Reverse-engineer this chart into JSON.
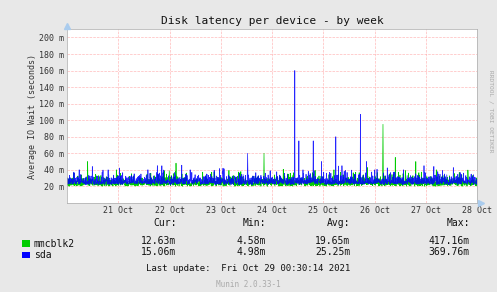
{
  "title": "Disk latency per device - by week",
  "ylabel": "Average IO Wait (seconds)",
  "background_color": "#e8e8e8",
  "plot_bg_color": "#ffffff",
  "grid_color_h": "#ffaaaa",
  "grid_color_v": "#ffaaaa",
  "line1_color": "#00cc00",
  "line2_color": "#0000ff",
  "line1_label": "mmcblk2",
  "line2_label": "sda",
  "ylim": [
    0,
    210
  ],
  "yticks": [
    20,
    40,
    60,
    80,
    100,
    120,
    140,
    160,
    180,
    200
  ],
  "ytick_labels": [
    "20 m",
    "40 m",
    "60 m",
    "80 m",
    "100 m",
    "120 m",
    "140 m",
    "160 m",
    "180 m",
    "200 m"
  ],
  "xtick_labels": [
    "21 Oct",
    "22 Oct",
    "23 Oct",
    "24 Oct",
    "25 Oct",
    "26 Oct",
    "27 Oct",
    "28 Oct"
  ],
  "stats": {
    "cur": [
      "12.63m",
      "15.06m"
    ],
    "min": [
      "4.58m",
      "4.98m"
    ],
    "avg": [
      "19.65m",
      "25.25m"
    ],
    "max": [
      "417.16m",
      "369.76m"
    ]
  },
  "footer": "Last update:  Fri Oct 29 00:30:14 2021",
  "watermark": "Munin 2.0.33-1",
  "rrdtool_text": "RRDTOOL / TOBI OETIKER",
  "seed": 42,
  "n_points": 2000
}
